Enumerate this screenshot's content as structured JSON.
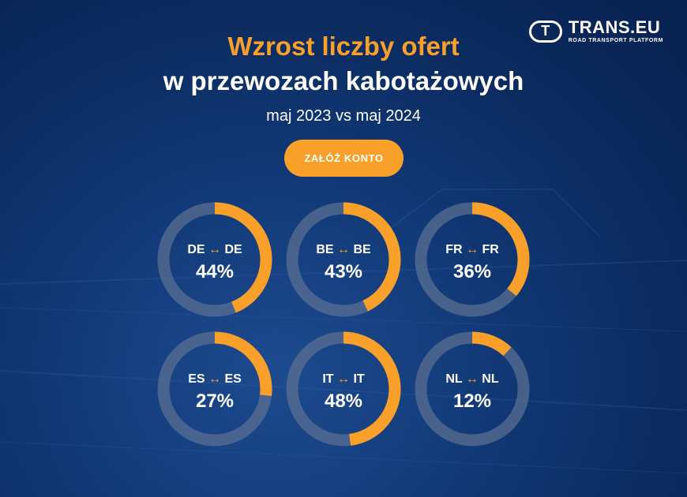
{
  "header": {
    "logo_mark": "T",
    "logo_name": "TRANS.EU",
    "logo_tagline": "ROAD TRANSPORT PLATFORM",
    "title_line1": "Wzrost liczby ofert",
    "title_line2": "w przewozach kabotażowych",
    "subtitle": "maj 2023 vs maj 2024"
  },
  "cta": {
    "label": "ZAŁÓŻ KONTO"
  },
  "colors": {
    "accent": "#f9a02a",
    "track": "#5a6f91",
    "background": "#0f3572"
  },
  "arrow_symbol": "↔",
  "chart_data": {
    "type": "donut-grid",
    "unit": "%",
    "items": [
      {
        "from": "DE",
        "to": "DE",
        "value": 44,
        "label": "44%"
      },
      {
        "from": "BE",
        "to": "BE",
        "value": 43,
        "label": "43%"
      },
      {
        "from": "FR",
        "to": "FR",
        "value": 36,
        "label": "36%"
      },
      {
        "from": "ES",
        "to": "ES",
        "value": 27,
        "label": "27%"
      },
      {
        "from": "IT",
        "to": "IT",
        "value": 48,
        "label": "48%"
      },
      {
        "from": "NL",
        "to": "NL",
        "value": 12,
        "label": "12%"
      }
    ]
  }
}
